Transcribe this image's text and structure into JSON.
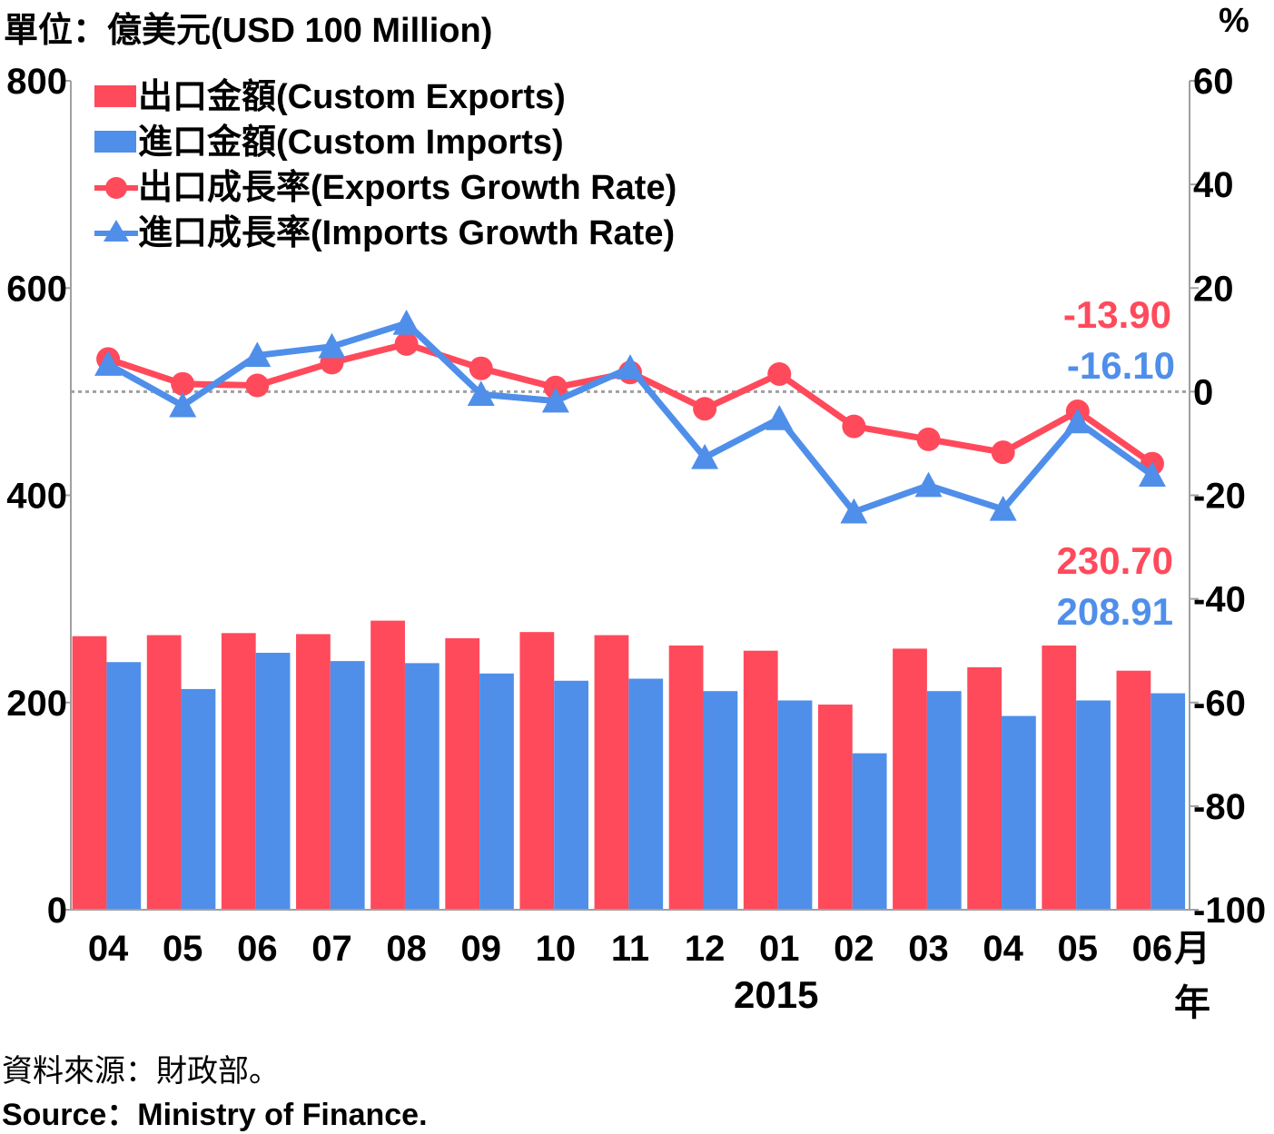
{
  "header": {
    "unit_label": "單位：億美元(USD 100 Million)",
    "right_unit": "%"
  },
  "colors": {
    "exports": "#ff4a5c",
    "imports": "#4f8fea",
    "zero_line": "#a0a0a0"
  },
  "legend": {
    "exports": "出口金額(Custom Exports)",
    "imports": "進口金額(Custom Imports)",
    "exports_growth": "出口成長率(Exports Growth Rate)",
    "imports_growth": "進口成長率(Imports Growth Rate)"
  },
  "x_axis": {
    "year_label": "2015",
    "month_suffix": "月",
    "year_suffix": "年"
  },
  "annotations": {
    "exports_growth_last": "-13.90",
    "imports_growth_last": "-16.10",
    "exports_last": "230.70",
    "imports_last": "208.91"
  },
  "source": {
    "zh": "資料來源：財政部。",
    "en": "Source：Ministry of Finance."
  },
  "chart_data": {
    "type": "bar",
    "categories": [
      "04",
      "05",
      "06",
      "07",
      "08",
      "09",
      "10",
      "11",
      "12",
      "01",
      "02",
      "03",
      "04",
      "05",
      "06"
    ],
    "series": [
      {
        "name": "出口金額(Custom Exports)",
        "type": "bar",
        "axis": "left",
        "values": [
          264,
          265,
          267,
          266,
          279,
          262,
          268,
          265,
          255,
          250,
          198,
          252,
          234,
          255,
          230.7
        ]
      },
      {
        "name": "進口金額(Custom Imports)",
        "type": "bar",
        "axis": "left",
        "values": [
          239,
          213,
          248,
          240,
          238,
          228,
          221,
          223,
          211,
          202,
          151,
          211,
          187,
          202,
          208.91
        ]
      },
      {
        "name": "出口成長率(Exports Growth Rate)",
        "type": "line",
        "marker": "circle",
        "axis": "right",
        "values": [
          6.3,
          1.5,
          1.2,
          5.6,
          9.2,
          4.5,
          0.8,
          3.7,
          -3.3,
          3.4,
          -6.7,
          -9.2,
          -11.7,
          -3.8,
          -13.9
        ]
      },
      {
        "name": "進口成長率(Imports Growth Rate)",
        "type": "line",
        "marker": "triangle",
        "axis": "right",
        "values": [
          5.3,
          -2.7,
          7.0,
          8.7,
          13.2,
          -0.5,
          -1.8,
          4.6,
          -12.7,
          -5.2,
          -23.2,
          -18.1,
          -22.7,
          -5.8,
          -16.1
        ]
      }
    ],
    "y_left": {
      "ylim": [
        0,
        800
      ],
      "ticks": [
        0,
        200,
        400,
        600,
        800
      ]
    },
    "y_right": {
      "ylim": [
        -100,
        60
      ],
      "ticks": [
        -100,
        -80,
        -60,
        -40,
        -20,
        0,
        20,
        40,
        60
      ]
    },
    "legend_position": "top-left",
    "grid": false
  }
}
